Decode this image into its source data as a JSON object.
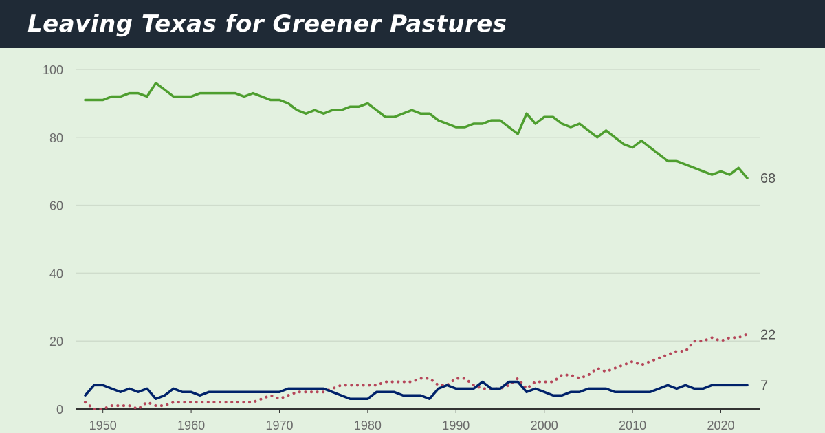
{
  "title": "Leaving Texas for Greener Pastures",
  "chart_data": {
    "type": "line",
    "title": "Leaving Texas for Greener Pastures",
    "xlabel": "",
    "ylabel": "",
    "xlim": [
      1948,
      2023
    ],
    "ylim": [
      0,
      100
    ],
    "yticks": [
      "0",
      "20",
      "40",
      "60",
      "80",
      "100"
    ],
    "xticks": [
      "1950",
      "1960",
      "1970",
      "1980",
      "1990",
      "2000",
      "2010",
      "2020"
    ],
    "grid": true,
    "x": [
      1948,
      1949,
      1950,
      1951,
      1952,
      1953,
      1954,
      1955,
      1956,
      1957,
      1958,
      1959,
      1960,
      1961,
      1962,
      1963,
      1964,
      1965,
      1966,
      1967,
      1968,
      1969,
      1970,
      1971,
      1972,
      1973,
      1974,
      1975,
      1976,
      1977,
      1978,
      1979,
      1980,
      1981,
      1982,
      1983,
      1984,
      1985,
      1986,
      1987,
      1988,
      1989,
      1990,
      1991,
      1992,
      1993,
      1994,
      1995,
      1996,
      1997,
      1998,
      1999,
      2000,
      2001,
      2002,
      2003,
      2004,
      2005,
      2006,
      2007,
      2008,
      2009,
      2010,
      2011,
      2012,
      2013,
      2014,
      2015,
      2016,
      2017,
      2018,
      2019,
      2020,
      2021,
      2022,
      2023
    ],
    "series": [
      {
        "name": "green",
        "color": "#4e9e2f",
        "style": "solid",
        "end_label": "68",
        "values": [
          91,
          91,
          91,
          92,
          92,
          93,
          93,
          92,
          96,
          94,
          92,
          92,
          92,
          93,
          93,
          93,
          93,
          93,
          92,
          93,
          92,
          91,
          91,
          90,
          88,
          87,
          88,
          87,
          88,
          88,
          89,
          89,
          90,
          88,
          86,
          86,
          87,
          88,
          87,
          87,
          85,
          84,
          83,
          83,
          84,
          84,
          85,
          85,
          83,
          81,
          87,
          84,
          86,
          86,
          84,
          83,
          84,
          82,
          80,
          82,
          80,
          78,
          77,
          79,
          77,
          75,
          73,
          73,
          72,
          71,
          70,
          69,
          70,
          69,
          71,
          68
        ]
      },
      {
        "name": "red",
        "color": "#b5475a",
        "style": "dotted",
        "end_label": "22",
        "values": [
          2,
          0,
          0,
          1,
          1,
          1,
          0,
          2,
          1,
          1,
          2,
          2,
          2,
          2,
          2,
          2,
          2,
          2,
          2,
          2,
          3,
          4,
          3,
          4,
          5,
          5,
          5,
          5,
          6,
          7,
          7,
          7,
          7,
          7,
          8,
          8,
          8,
          8,
          9,
          9,
          7,
          7,
          9,
          9,
          7,
          6,
          6,
          6,
          7,
          9,
          6,
          8,
          8,
          8,
          10,
          10,
          9,
          10,
          12,
          11,
          12,
          13,
          14,
          13,
          14,
          15,
          16,
          17,
          17,
          20,
          20,
          21,
          20,
          21,
          21,
          22
        ]
      },
      {
        "name": "blue",
        "color": "#00226a",
        "style": "solid",
        "end_label": "7",
        "values": [
          4,
          7,
          7,
          6,
          5,
          6,
          5,
          6,
          3,
          4,
          6,
          5,
          5,
          4,
          5,
          5,
          5,
          5,
          5,
          5,
          5,
          5,
          5,
          6,
          6,
          6,
          6,
          6,
          5,
          4,
          3,
          3,
          3,
          5,
          5,
          5,
          4,
          4,
          4,
          3,
          6,
          7,
          6,
          6,
          6,
          8,
          6,
          6,
          8,
          8,
          5,
          6,
          5,
          4,
          4,
          5,
          5,
          6,
          6,
          6,
          5,
          5,
          5,
          5,
          5,
          6,
          7,
          6,
          7,
          6,
          6,
          7,
          7,
          7,
          7,
          7
        ]
      }
    ]
  }
}
